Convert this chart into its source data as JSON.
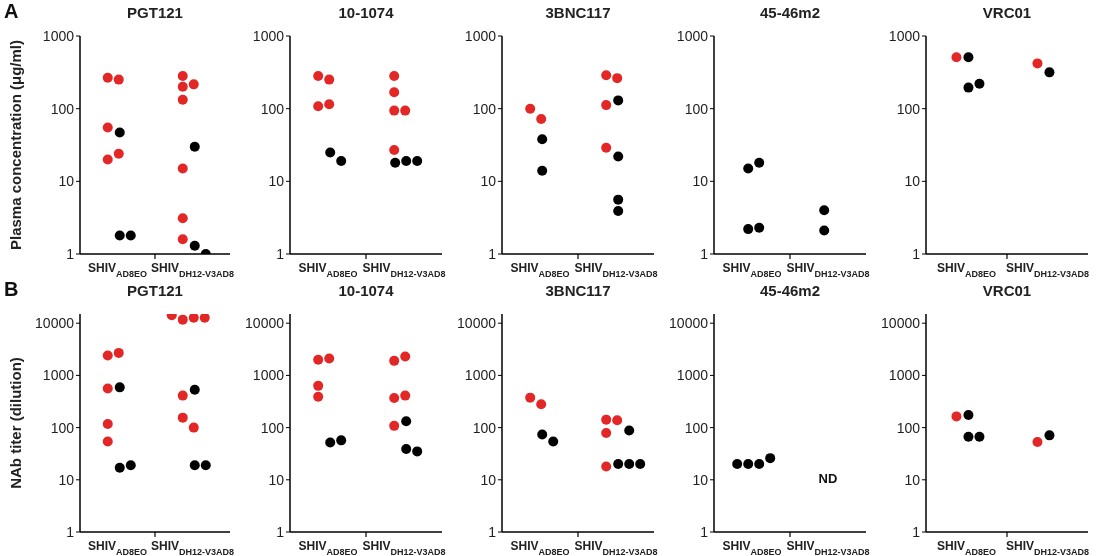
{
  "chart_data": [
    {
      "type": "scatter",
      "title": "PGT121",
      "ylabel": "Plasma concentration (μg/ml)",
      "annotations": [
        "A"
      ],
      "categories": [
        "SHIV$_{AD8EO}$",
        "SHIV$_{DH12-V3AD8}$"
      ],
      "ylim": [
        1,
        1000
      ],
      "yticks": [
        1,
        10,
        100,
        1000
      ],
      "log": true,
      "marker": "circle",
      "series": [
        {
          "color": "#e32626",
          "x": [
            "SHIV$_{AD8EO}$",
            "SHIV$_{AD8EO}$",
            "SHIV$_{AD8EO}$",
            "SHIV$_{AD8EO}$",
            "SHIV$_{AD8EO}$",
            "SHIV$_{DH12-V3AD8}$",
            "SHIV$_{DH12-V3AD8}$",
            "SHIV$_{DH12-V3AD8}$",
            "SHIV$_{DH12-V3AD8}$",
            "SHIV$_{DH12-V3AD8}$",
            "SHIV$_{DH12-V3AD8}$",
            "SHIV$_{DH12-V3AD8}$"
          ],
          "values": [
            266,
            251,
            55,
            20,
            24,
            282,
            216,
            200,
            133,
            15,
            3.1,
            1.6
          ]
        },
        {
          "color": "#000000",
          "x": [
            "SHIV$_{AD8EO}$",
            "SHIV$_{AD8EO}$",
            "SHIV$_{AD8EO}$",
            "SHIV$_{DH12-V3AD8}$",
            "SHIV$_{DH12-V3AD8}$",
            "SHIV$_{DH12-V3AD8}$"
          ],
          "values": [
            47,
            1.8,
            1.8,
            30,
            1.3,
            1
          ]
        }
      ]
    },
    {
      "type": "scatter",
      "title": "10-1074",
      "categories": [
        "SHIV$_{AD8EO}$",
        "SHIV$_{DH12-V3AD8}$"
      ],
      "ylim": [
        1,
        1000
      ],
      "yticks": [
        1,
        10,
        100,
        1000
      ],
      "log": true,
      "marker": "circle",
      "series": [
        {
          "color": "#e32626",
          "x": [
            "SHIV$_{AD8EO}$",
            "SHIV$_{AD8EO}$",
            "SHIV$_{AD8EO}$",
            "SHIV$_{AD8EO}$",
            "SHIV$_{DH12-V3AD8}$",
            "SHIV$_{DH12-V3AD8}$",
            "SHIV$_{DH12-V3AD8}$",
            "SHIV$_{DH12-V3AD8}$",
            "SHIV$_{DH12-V3AD8}$"
          ],
          "values": [
            282,
            251,
            108,
            115,
            282,
            168,
            94,
            94,
            27
          ]
        },
        {
          "color": "#000000",
          "x": [
            "SHIV$_{AD8EO}$",
            "SHIV$_{AD8EO}$",
            "SHIV$_{DH12-V3AD8}$",
            "SHIV$_{DH12-V3AD8}$",
            "SHIV$_{DH12-V3AD8}$"
          ],
          "values": [
            25,
            19,
            19,
            19,
            18
          ]
        }
      ]
    },
    {
      "type": "scatter",
      "title": "3BNC117",
      "categories": [
        "SHIV$_{AD8EO}$",
        "SHIV$_{DH12-V3AD8}$"
      ],
      "ylim": [
        1,
        1000
      ],
      "yticks": [
        1,
        10,
        100,
        1000
      ],
      "log": true,
      "marker": "circle",
      "series": [
        {
          "color": "#e32626",
          "x": [
            "SHIV$_{AD8EO}$",
            "SHIV$_{AD8EO}$",
            "SHIV$_{DH12-V3AD8}$",
            "SHIV$_{DH12-V3AD8}$",
            "SHIV$_{DH12-V3AD8}$",
            "SHIV$_{DH12-V3AD8}$"
          ],
          "values": [
            100,
            72,
            288,
            263,
            112,
            29
          ]
        },
        {
          "color": "#000000",
          "x": [
            "SHIV$_{AD8EO}$",
            "SHIV$_{AD8EO}$",
            "SHIV$_{DH12-V3AD8}$",
            "SHIV$_{DH12-V3AD8}$",
            "SHIV$_{DH12-V3AD8}$",
            "SHIV$_{DH12-V3AD8}$"
          ],
          "values": [
            38,
            14,
            130,
            22,
            5.6,
            3.9
          ]
        }
      ]
    },
    {
      "type": "scatter",
      "title": "45-46m2",
      "categories": [
        "SHIV$_{AD8EO}$",
        "SHIV$_{DH12-V3AD8}$"
      ],
      "ylim": [
        1,
        1000
      ],
      "yticks": [
        1,
        10,
        100,
        1000
      ],
      "log": true,
      "marker": "circle",
      "series": [
        {
          "color": "#000000",
          "x": [
            "SHIV$_{AD8EO}$",
            "SHIV$_{AD8EO}$",
            "SHIV$_{AD8EO}$",
            "SHIV$_{AD8EO}$",
            "SHIV$_{DH12-V3AD8}$",
            "SHIV$_{DH12-V3AD8}$"
          ],
          "values": [
            2.2,
            15,
            18,
            2.3,
            2.1,
            4
          ]
        }
      ]
    },
    {
      "type": "scatter",
      "title": "VRC01",
      "categories": [
        "SHIV$_{AD8EO}$",
        "SHIV$_{DH12-V3AD8}$"
      ],
      "ylim": [
        1,
        1000
      ],
      "yticks": [
        1,
        10,
        100,
        1000
      ],
      "log": true,
      "marker": "circle",
      "series": [
        {
          "color": "#e32626",
          "x": [
            "SHIV$_{AD8EO}$",
            "SHIV$_{DH12-V3AD8}$"
          ],
          "values": [
            510,
            420
          ]
        },
        {
          "color": "#000000",
          "x": [
            "SHIV$_{AD8EO}$",
            "SHIV$_{AD8EO}$",
            "SHIV$_{AD8EO}$",
            "SHIV$_{DH12-V3AD8}$"
          ],
          "values": [
            510,
            195,
            220,
            316
          ]
        }
      ]
    },
    {
      "type": "scatter",
      "title": "PGT121",
      "ylabel": "NAb titer (dilution)",
      "annotations": [
        "B"
      ],
      "categories": [
        "SHIV$_{AD8EO}$",
        "SHIV$_{DH12-V3AD8}$"
      ],
      "ylim": [
        1,
        15000
      ],
      "yticks": [
        1,
        10,
        100,
        1000,
        10000
      ],
      "log": true,
      "marker": "circle",
      "series": [
        {
          "color": "#e32626",
          "x": [
            "SHIV$_{AD8EO}$",
            "SHIV$_{AD8EO}$",
            "SHIV$_{AD8EO}$",
            "SHIV$_{AD8EO}$",
            "SHIV$_{AD8EO}$",
            "SHIV$_{DH12-V3AD8}$",
            "SHIV$_{DH12-V3AD8}$",
            "SHIV$_{DH12-V3AD8}$",
            "SHIV$_{DH12-V3AD8}$",
            "SHIV$_{DH12-V3AD8}$",
            "SHIV$_{DH12-V3AD8}$",
            "SHIV$_{DH12-V3AD8}$"
          ],
          "values": [
            2400,
            2700,
            560,
            117,
            54,
            11700,
            12700,
            14200,
            12700,
            155,
            100,
            410
          ]
        },
        {
          "color": "#000000",
          "x": [
            "SHIV$_{AD8EO}$",
            "SHIV$_{AD8EO}$",
            "SHIV$_{AD8EO}$",
            "SHIV$_{DH12-V3AD8}$",
            "SHIV$_{DH12-V3AD8}$",
            "SHIV$_{DH12-V3AD8}$"
          ],
          "values": [
            590,
            17,
            19,
            530,
            19,
            19
          ]
        }
      ]
    },
    {
      "type": "scatter",
      "title": "10-1074",
      "categories": [
        "SHIV$_{AD8EO}$",
        "SHIV$_{DH12-V3AD8}$"
      ],
      "ylim": [
        1,
        15000
      ],
      "yticks": [
        1,
        10,
        100,
        1000,
        10000
      ],
      "log": true,
      "marker": "circle",
      "series": [
        {
          "color": "#e32626",
          "x": [
            "SHIV$_{AD8EO}$",
            "SHIV$_{AD8EO}$",
            "SHIV$_{AD8EO}$",
            "SHIV$_{AD8EO}$",
            "SHIV$_{DH12-V3AD8}$",
            "SHIV$_{DH12-V3AD8}$",
            "SHIV$_{DH12-V3AD8}$",
            "SHIV$_{DH12-V3AD8}$",
            "SHIV$_{DH12-V3AD8}$"
          ],
          "values": [
            2000,
            2100,
            630,
            390,
            1900,
            2300,
            370,
            410,
            108
          ]
        },
        {
          "color": "#000000",
          "x": [
            "SHIV$_{AD8EO}$",
            "SHIV$_{AD8EO}$",
            "SHIV$_{DH12-V3AD8}$",
            "SHIV$_{DH12-V3AD8}$",
            "SHIV$_{DH12-V3AD8}$"
          ],
          "values": [
            52,
            57,
            39,
            35,
            132
          ]
        }
      ]
    },
    {
      "type": "scatter",
      "title": "3BNC117",
      "categories": [
        "SHIV$_{AD8EO}$",
        "SHIV$_{DH12-V3AD8}$"
      ],
      "ylim": [
        1,
        15000
      ],
      "yticks": [
        1,
        10,
        100,
        1000,
        10000
      ],
      "log": true,
      "marker": "circle",
      "series": [
        {
          "color": "#e32626",
          "x": [
            "SHIV$_{AD8EO}$",
            "SHIV$_{AD8EO}$",
            "SHIV$_{DH12-V3AD8}$",
            "SHIV$_{DH12-V3AD8}$",
            "SHIV$_{DH12-V3AD8}$",
            "SHIV$_{DH12-V3AD8}$"
          ],
          "values": [
            375,
            280,
            142,
            138,
            79,
            18
          ]
        },
        {
          "color": "#000000",
          "x": [
            "SHIV$_{AD8EO}$",
            "SHIV$_{AD8EO}$",
            "SHIV$_{DH12-V3AD8}$",
            "SHIV$_{DH12-V3AD8}$",
            "SHIV$_{DH12-V3AD8}$",
            "SHIV$_{DH12-V3AD8}$"
          ],
          "values": [
            74,
            54,
            88,
            20,
            20,
            20
          ]
        }
      ]
    },
    {
      "type": "scatter",
      "title": "45-46m2",
      "annotations": [
        "ND"
      ],
      "categories": [
        "SHIV$_{AD8EO}$",
        "SHIV$_{DH12-V3AD8}$"
      ],
      "ylim": [
        1,
        15000
      ],
      "yticks": [
        1,
        10,
        100,
        1000,
        10000
      ],
      "log": true,
      "marker": "circle",
      "series": [
        {
          "color": "#000000",
          "x": [
            "SHIV$_{AD8EO}$",
            "SHIV$_{AD8EO}$",
            "SHIV$_{AD8EO}$",
            "SHIV$_{AD8EO}$"
          ],
          "values": [
            20,
            20,
            20,
            26
          ]
        }
      ]
    },
    {
      "type": "scatter",
      "title": "VRC01",
      "categories": [
        "SHIV$_{AD8EO}$",
        "SHIV$_{DH12-V3AD8}$"
      ],
      "ylim": [
        1,
        15000
      ],
      "yticks": [
        1,
        10,
        100,
        1000,
        10000
      ],
      "log": true,
      "marker": "circle",
      "series": [
        {
          "color": "#e32626",
          "x": [
            "SHIV$_{AD8EO}$",
            "SHIV$_{DH12-V3AD8}$"
          ],
          "values": [
            164,
            53
          ]
        },
        {
          "color": "#000000",
          "x": [
            "SHIV$_{AD8EO}$",
            "SHIV$_{AD8EO}$",
            "SHIV$_{AD8EO}$",
            "SHIV$_{DH12-V3AD8}$"
          ],
          "values": [
            174,
            67,
            67,
            71
          ]
        }
      ]
    }
  ]
}
